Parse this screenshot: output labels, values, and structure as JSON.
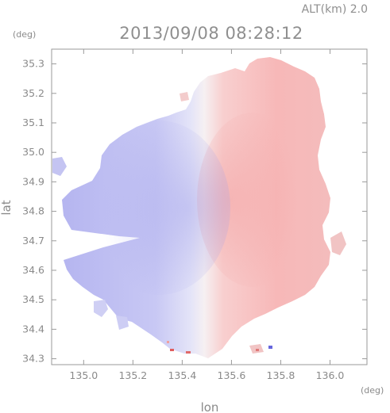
{
  "header": {
    "altitude_label": "ALT(km) 2.0",
    "timestamp": "2013/09/08 08:28:12",
    "y_unit": "(deg)",
    "x_unit": "(deg)"
  },
  "chart_data": {
    "type": "heatmap",
    "title": "2013/09/08 08:28:12",
    "subtitle": "ALT(km) 2.0",
    "xlabel": "lon",
    "ylabel": "lat",
    "x_unit": "(deg)",
    "y_unit": "(deg)",
    "xlim": [
      134.87,
      136.15
    ],
    "ylim": [
      34.28,
      35.35
    ],
    "x_ticks": [
      135.0,
      135.2,
      135.4,
      135.6,
      135.8,
      136.0
    ],
    "x_tick_labels": [
      "135.0",
      "135.2",
      "135.4",
      "135.6",
      "135.8",
      "136.0"
    ],
    "y_ticks": [
      34.3,
      34.4,
      34.5,
      34.6,
      34.7,
      34.8,
      34.9,
      35.0,
      35.1,
      35.2,
      35.3
    ],
    "y_tick_labels": [
      "34.3",
      "34.4",
      "34.5",
      "34.6",
      "34.7",
      "34.8",
      "34.9",
      "35.0",
      "35.1",
      "35.2",
      "35.3"
    ],
    "center": {
      "lon": 135.52,
      "lat": 34.82
    },
    "color_scheme": {
      "negative": "#a8a8ee",
      "neutral": "#f4f4f8",
      "positive": "#f5a8a8"
    },
    "grid": false
  }
}
